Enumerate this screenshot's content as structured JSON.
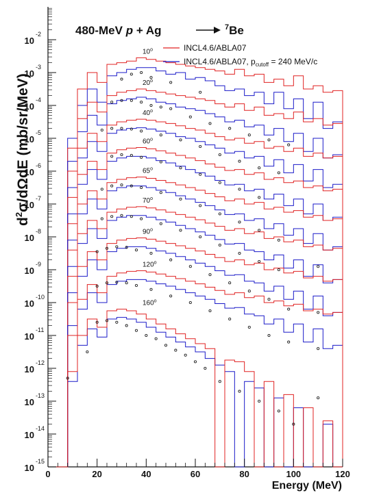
{
  "chart_data": {
    "type": "line",
    "title": {
      "prefix": "480-MeV ",
      "projectile": "p",
      "middle": " + Ag",
      "product_mass": "7",
      "product": "Be"
    },
    "xlabel": "Energy (MeV)",
    "ylabel": {
      "part1": "d",
      "sup": "2",
      "part2": "σ/dΩdE",
      "part3": " (mb/sr/MeV)"
    },
    "xlim": [
      0,
      120
    ],
    "x_ticks": [
      "0",
      "20",
      "40",
      "60",
      "80",
      "100",
      "120"
    ],
    "y_tick_base": "10",
    "y_tick_exponents": [
      "-2",
      "-3",
      "-4",
      "-5",
      "-6",
      "-7",
      "-8",
      "-9",
      "-10",
      "-11",
      "-12",
      "-13",
      "-14",
      "-15"
    ],
    "y_scale": "log",
    "ylim": [
      1e-15,
      0.1
    ],
    "legend": {
      "placement": "top-right",
      "red_label": "INCL4.6/ABLA07",
      "blue_label_main": "INCL4.6/ABLA07, p",
      "blue_label_sub": "cutoff",
      "blue_label_tail": " = 240 MeV/c"
    },
    "colors": {
      "red": "#e02020",
      "blue": "#1818c8",
      "data": "#222222"
    },
    "bin_edges": [
      0,
      4,
      8,
      12,
      16,
      20,
      24,
      28,
      32,
      36,
      40,
      44,
      48,
      52,
      56,
      60,
      64,
      68,
      72,
      76,
      80,
      84,
      88,
      92,
      96,
      100,
      104,
      108,
      112,
      116,
      120
    ],
    "series": [
      {
        "angle": "10",
        "red": [
          -15,
          -15,
          -5.3,
          -3.5,
          -3.0,
          -3.3,
          -2.75,
          -2.7,
          -2.65,
          -2.55,
          -2.6,
          -2.65,
          -2.7,
          -2.75,
          -2.8,
          -2.85,
          -2.9,
          -2.95,
          -3.05,
          -2.9,
          -3.1,
          -3.05,
          -3.3,
          -3.2,
          -3.4,
          -3.1,
          -3.5,
          -3.4,
          -3.6,
          -3.55
        ],
        "blue": [
          -15,
          -15,
          -5.0,
          -4.0,
          -3.5,
          -3.9,
          -3.1,
          -3.0,
          -2.9,
          -2.85,
          -2.85,
          -2.95,
          -3.05,
          -3.0,
          -3.2,
          -3.15,
          -3.25,
          -3.4,
          -3.55,
          -3.5,
          -3.7,
          -3.6,
          -3.95,
          -3.6,
          -4.1,
          -3.8,
          -4.4,
          -3.9,
          -4.7,
          -4.5
        ],
        "points": [
          [
            30,
            -3.2
          ],
          [
            34,
            -3.05
          ],
          [
            38,
            -3.0
          ],
          [
            42,
            -3.15
          ],
          [
            50,
            -3.3
          ],
          [
            62,
            -3.6
          ]
        ]
      },
      {
        "angle": "20",
        "red": [
          -15,
          -15,
          -6.0,
          -4.4,
          -3.9,
          -4.2,
          -3.7,
          -3.6,
          -3.55,
          -3.5,
          -3.55,
          -3.6,
          -3.65,
          -3.7,
          -3.75,
          -3.8,
          -3.85,
          -3.95,
          -4.05,
          -3.95,
          -4.15,
          -4.05,
          -4.3,
          -4.25,
          -4.4,
          -4.2,
          -4.5,
          -4.4,
          -4.6,
          -4.55
        ],
        "blue": [
          -15,
          -15,
          -5.7,
          -4.8,
          -4.3,
          -4.6,
          -3.95,
          -3.85,
          -3.8,
          -3.75,
          -3.8,
          -3.9,
          -3.95,
          -4.05,
          -4.1,
          -4.15,
          -4.25,
          -4.35,
          -4.5,
          -4.45,
          -4.65,
          -4.6,
          -4.9,
          -4.7,
          -5.1,
          -4.85,
          -5.4,
          -5.0,
          -5.6,
          -5.5
        ],
        "points": [
          [
            26,
            -3.9
          ],
          [
            30,
            -3.85
          ],
          [
            34,
            -3.85
          ],
          [
            38,
            -3.9
          ],
          [
            42,
            -4.0
          ],
          [
            46,
            -4.05
          ],
          [
            50,
            -4.1
          ],
          [
            58,
            -4.35
          ],
          [
            66,
            -4.55
          ],
          [
            74,
            -4.7
          ],
          [
            82,
            -4.9
          ],
          [
            90,
            -5.05
          ],
          [
            98,
            -5.2
          ]
        ]
      },
      {
        "angle": "40",
        "red": [
          -15,
          -15,
          -6.8,
          -5.3,
          -4.85,
          -5.1,
          -4.6,
          -4.5,
          -4.45,
          -4.42,
          -4.45,
          -4.5,
          -4.55,
          -4.62,
          -4.7,
          -4.75,
          -4.85,
          -4.95,
          -5.05,
          -5.0,
          -5.15,
          -5.1,
          -5.3,
          -5.25,
          -5.4,
          -5.3,
          -5.55,
          -5.45,
          -5.6,
          -5.55
        ],
        "blue": [
          -15,
          -15,
          -6.5,
          -5.6,
          -5.1,
          -5.4,
          -4.85,
          -4.75,
          -4.7,
          -4.68,
          -4.72,
          -4.78,
          -4.85,
          -4.95,
          -5.0,
          -5.1,
          -5.2,
          -5.3,
          -5.45,
          -5.4,
          -5.6,
          -5.55,
          -5.85,
          -5.65,
          -6.05,
          -5.8,
          -6.3,
          -5.95,
          -6.5,
          -6.4
        ],
        "points": [
          [
            22,
            -4.75
          ],
          [
            26,
            -4.7
          ],
          [
            30,
            -4.7
          ],
          [
            34,
            -4.72
          ],
          [
            38,
            -4.78
          ],
          [
            46,
            -4.9
          ],
          [
            54,
            -5.05
          ],
          [
            62,
            -5.25
          ],
          [
            70,
            -5.5
          ],
          [
            78,
            -5.7
          ],
          [
            86,
            -5.9
          ],
          [
            94,
            -6.05
          ]
        ]
      },
      {
        "angle": "60",
        "red": [
          -15,
          -15,
          -7.6,
          -6.1,
          -5.7,
          -5.95,
          -5.45,
          -5.35,
          -5.3,
          -5.28,
          -5.32,
          -5.38,
          -5.45,
          -5.52,
          -5.6,
          -5.68,
          -5.78,
          -5.88,
          -5.98,
          -5.95,
          -6.1,
          -6.05,
          -6.25,
          -6.2,
          -6.35,
          -6.3,
          -6.5,
          -6.45,
          -6.6,
          -6.55
        ],
        "blue": [
          -15,
          -15,
          -7.3,
          -6.4,
          -5.95,
          -6.25,
          -5.7,
          -5.6,
          -5.55,
          -5.55,
          -5.6,
          -5.68,
          -5.75,
          -5.85,
          -5.95,
          -6.05,
          -6.15,
          -6.28,
          -6.42,
          -6.4,
          -6.6,
          -6.55,
          -6.85,
          -6.7,
          -7.05,
          -6.85,
          -7.3,
          -7.0,
          -7.5,
          -7.4
        ],
        "points": [
          [
            26,
            -5.55
          ],
          [
            30,
            -5.5
          ],
          [
            34,
            -5.52
          ],
          [
            38,
            -5.58
          ],
          [
            46,
            -5.72
          ],
          [
            54,
            -5.9
          ],
          [
            62,
            -6.1
          ],
          [
            70,
            -6.35
          ],
          [
            78,
            -6.55
          ],
          [
            86,
            -6.8
          ]
        ]
      },
      {
        "angle": "65",
        "red": [
          -15,
          -15,
          -8.4,
          -7.0,
          -6.6,
          -6.85,
          -6.35,
          -6.25,
          -6.2,
          -6.18,
          -6.22,
          -6.28,
          -6.35,
          -6.42,
          -6.5,
          -6.58,
          -6.68,
          -6.78,
          -6.9,
          -6.85,
          -7.0,
          -6.95,
          -7.15,
          -7.1,
          -7.25,
          -7.2,
          -7.4,
          -7.35,
          -7.5,
          -7.45
        ],
        "blue": [
          -15,
          -15,
          -8.1,
          -7.3,
          -6.85,
          -7.15,
          -6.6,
          -6.5,
          -6.45,
          -6.45,
          -6.5,
          -6.58,
          -6.65,
          -6.75,
          -6.85,
          -6.95,
          -7.05,
          -7.18,
          -7.32,
          -7.3,
          -7.5,
          -7.45,
          -7.75,
          -7.6,
          -7.95,
          -7.75,
          -8.2,
          -7.9,
          -8.4,
          -8.3
        ],
        "points": [
          [
            22,
            -6.55
          ],
          [
            26,
            -6.45
          ],
          [
            30,
            -6.42
          ],
          [
            34,
            -6.45
          ],
          [
            38,
            -6.5
          ],
          [
            46,
            -6.65
          ],
          [
            54,
            -6.85
          ],
          [
            62,
            -7.05
          ],
          [
            70,
            -7.3
          ],
          [
            78,
            -7.55
          ],
          [
            86,
            -7.8
          ],
          [
            94,
            -8.1
          ]
        ]
      },
      {
        "angle": "70",
        "red": [
          -15,
          -15,
          -9.2,
          -7.9,
          -7.5,
          -7.75,
          -7.25,
          -7.15,
          -7.1,
          -7.08,
          -7.12,
          -7.18,
          -7.25,
          -7.32,
          -7.4,
          -7.48,
          -7.58,
          -7.68,
          -7.8,
          -7.75,
          -7.9,
          -7.85,
          -8.05,
          -8.0,
          -8.15,
          -8.1,
          -8.3,
          -8.25,
          -8.4,
          -8.35
        ],
        "blue": [
          -15,
          -15,
          -8.9,
          -8.2,
          -7.75,
          -8.05,
          -7.5,
          -7.4,
          -7.35,
          -7.35,
          -7.4,
          -7.48,
          -7.55,
          -7.65,
          -7.75,
          -7.85,
          -7.95,
          -8.08,
          -8.22,
          -8.2,
          -8.4,
          -8.45,
          -8.7,
          -8.55,
          -8.95,
          -8.7,
          -9.2,
          -8.85,
          -9.4,
          -9.3
        ],
        "points": [
          [
            22,
            -7.45
          ],
          [
            26,
            -7.38
          ],
          [
            30,
            -7.35
          ],
          [
            34,
            -7.38
          ],
          [
            38,
            -7.45
          ],
          [
            46,
            -7.6
          ],
          [
            54,
            -7.8
          ],
          [
            62,
            -8.0
          ],
          [
            70,
            -8.25
          ],
          [
            78,
            -8.5
          ],
          [
            86,
            -8.75
          ],
          [
            94,
            -9.0
          ],
          [
            110,
            -8.9
          ]
        ]
      },
      {
        "angle": "90",
        "red": [
          -15,
          -15,
          -10.0,
          -8.9,
          -8.45,
          -8.7,
          -8.2,
          -8.1,
          -8.05,
          -8.03,
          -8.07,
          -8.13,
          -8.2,
          -8.27,
          -8.35,
          -8.43,
          -8.53,
          -8.63,
          -8.75,
          -8.7,
          -8.85,
          -8.8,
          -9.0,
          -8.95,
          -9.1,
          -9.05,
          -9.25,
          -9.2,
          -9.35,
          -9.3
        ],
        "blue": [
          -15,
          -15,
          -9.7,
          -9.2,
          -8.7,
          -9.0,
          -8.45,
          -8.35,
          -8.3,
          -8.3,
          -8.35,
          -8.43,
          -8.5,
          -8.6,
          -8.7,
          -8.8,
          -8.9,
          -9.03,
          -9.17,
          -9.15,
          -9.35,
          -9.4,
          -9.65,
          -9.5,
          -9.9,
          -9.65,
          -10.2,
          -9.8,
          -10.4,
          -10.3
        ],
        "points": [
          [
            20,
            -8.45
          ],
          [
            24,
            -8.35
          ],
          [
            28,
            -8.3
          ],
          [
            32,
            -8.32
          ],
          [
            36,
            -8.4
          ],
          [
            42,
            -8.5
          ],
          [
            50,
            -8.7
          ],
          [
            58,
            -8.9
          ],
          [
            66,
            -9.15
          ],
          [
            74,
            -9.4
          ],
          [
            82,
            -9.65
          ],
          [
            90,
            -9.9
          ],
          [
            98,
            -10.2
          ],
          [
            110,
            -10.3
          ]
        ]
      },
      {
        "angle": "120",
        "red": [
          -15,
          -15,
          -11.0,
          -9.9,
          -9.45,
          -9.7,
          -9.2,
          -9.1,
          -9.05,
          -9.03,
          -9.07,
          -9.13,
          -9.2,
          -9.27,
          -9.35,
          -9.43,
          -9.53,
          -9.63,
          -9.75,
          -9.7,
          -9.85,
          -9.8,
          -10.0,
          -9.95,
          -10.1,
          -10.05,
          -10.25,
          -10.2,
          -10.35,
          -10.3
        ],
        "blue": [
          -15,
          -15,
          -10.7,
          -10.2,
          -9.7,
          -10.0,
          -9.45,
          -9.35,
          -9.3,
          -9.3,
          -9.35,
          -9.43,
          -9.5,
          -9.6,
          -9.7,
          -9.8,
          -9.9,
          -10.03,
          -10.17,
          -10.15,
          -10.35,
          -10.4,
          -10.65,
          -10.5,
          -10.9,
          -10.65,
          -11.2,
          -10.8,
          -11.4,
          -11.3
        ],
        "points": [
          [
            20,
            -9.5
          ],
          [
            24,
            -9.4
          ],
          [
            28,
            -9.38
          ],
          [
            32,
            -9.4
          ],
          [
            36,
            -9.48
          ],
          [
            42,
            -9.6
          ],
          [
            50,
            -9.8
          ],
          [
            58,
            -10.0
          ],
          [
            66,
            -10.25
          ],
          [
            74,
            -10.5
          ],
          [
            82,
            -10.75
          ],
          [
            90,
            -11.0
          ],
          [
            98,
            -11.2
          ],
          [
            110,
            -11.4
          ]
        ]
      },
      {
        "angle": "160",
        "red": [
          -15,
          -15,
          -12.1,
          -11.0,
          -10.5,
          -10.75,
          -10.25,
          -10.2,
          -10.25,
          -10.35,
          -10.5,
          -10.65,
          -10.8,
          -10.95,
          -11.1,
          -11.25,
          -11.4,
          -15,
          -11.75,
          -11.8,
          -12.1,
          -15,
          -12.4,
          -15,
          -12.8,
          -15,
          -13.2,
          -15,
          -13.6,
          -15
        ],
        "blue": [
          -15,
          -15,
          -12.4,
          -11.3,
          -10.8,
          -11.05,
          -10.5,
          -10.45,
          -10.5,
          -10.6,
          -10.75,
          -10.9,
          -11.05,
          -11.2,
          -11.35,
          -11.5,
          -11.7,
          -11.9,
          -12.1,
          -15,
          -12.4,
          -12.6,
          -15,
          -12.9,
          -15,
          -13.2,
          -15,
          -15,
          -13.7,
          -15
        ],
        "points": [
          [
            8,
            -12.3
          ],
          [
            16,
            -11.5
          ],
          [
            20,
            -10.6
          ],
          [
            24,
            -10.55
          ],
          [
            28,
            -10.6
          ],
          [
            32,
            -10.7
          ],
          [
            36,
            -10.85
          ],
          [
            40,
            -11.0
          ],
          [
            44,
            -11.1
          ],
          [
            48,
            -11.3
          ],
          [
            52,
            -11.45
          ],
          [
            56,
            -11.6
          ],
          [
            60,
            -11.8
          ],
          [
            64,
            -12.0
          ],
          [
            70,
            -12.4
          ],
          [
            78,
            -12.7
          ],
          [
            86,
            -13.0
          ],
          [
            94,
            -13.3
          ],
          [
            100,
            -13.7
          ],
          [
            110,
            -12.9
          ]
        ]
      }
    ]
  }
}
